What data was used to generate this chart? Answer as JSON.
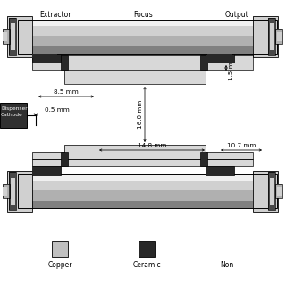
{
  "labels": {
    "extractor": "Extractor",
    "focus": "Focus",
    "output": "Output",
    "copper": "Copper",
    "ceramic": "Ceramic",
    "non": "Non-",
    "dispenser": "Dispenser",
    "cathode": "Cathode"
  },
  "dims": {
    "8.5mm": "8.5 mm",
    "0.5mm": "0.5 mm",
    "16.0mm": "16.0 mm",
    "14.8mm": "14.8 mm",
    "10.7mm": "10.7 mm",
    "1.5mm": "1.5 mm"
  },
  "colors": {
    "bg": "#ffffff",
    "tube_bright": "#f0f0f0",
    "tube_light": "#d0d0d0",
    "tube_mid": "#b0b0b0",
    "tube_dark": "#808080",
    "tube_shadow": "#606060",
    "plate_light": "#d8d8d8",
    "plate_mid": "#b8b8b8",
    "ceramic": "#282828",
    "flange_dark": "#484848",
    "black": "#000000",
    "legend_copper": "#c0c0c0",
    "legend_ceramic": "#282828",
    "cathode_box": "#303030"
  }
}
